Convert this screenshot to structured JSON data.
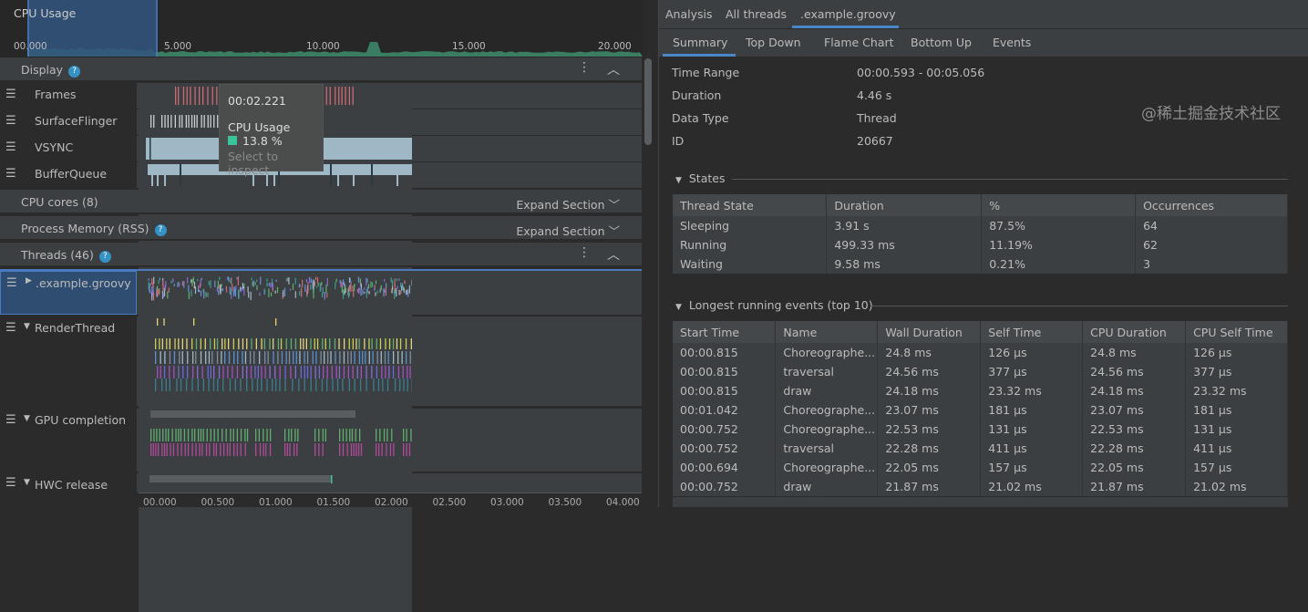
{
  "overview": {
    "title": "CPU Usage",
    "ticks": [
      "00.000",
      "5.000",
      "10.000",
      "15.000",
      "20.000"
    ]
  },
  "tooltip": {
    "time": "00:02.221",
    "label": "CPU Usage",
    "value": "13.8 %",
    "hint": "Select to inspect",
    "swatch": "#3bc49b"
  },
  "display": {
    "title": "Display"
  },
  "display_tracks": [
    "Frames",
    "SurfaceFlinger",
    "VSYNC",
    "BufferQueue"
  ],
  "sections": [
    {
      "title": "CPU cores (8)",
      "action": "Expand Section"
    },
    {
      "title": "Process Memory (RSS)",
      "action": "Expand Section"
    }
  ],
  "threads": {
    "title": "Threads (46)",
    "items": [
      ".example.groovy",
      "RenderThread",
      "GPU completion",
      "HWC release"
    ]
  },
  "time_axis": [
    "00.000",
    "00.500",
    "01.000",
    "01.500",
    "02.000",
    "02.500",
    "03.000",
    "03.500",
    "04.000"
  ],
  "right": {
    "tabs": [
      "Analysis",
      "All threads",
      ".example.groovy"
    ],
    "subtabs": [
      "Summary",
      "Top Down",
      "Flame Chart",
      "Bottom Up",
      "Events"
    ],
    "summary": [
      [
        "Time Range",
        "00:00.593 - 00:05.056"
      ],
      [
        "Duration",
        "4.46 s"
      ],
      [
        "Data Type",
        "Thread"
      ],
      [
        "ID",
        "20667"
      ]
    ],
    "states_title": "States",
    "states_cols": [
      "Thread State",
      "Duration",
      "%",
      "Occurrences"
    ],
    "states_rows": [
      [
        "Sleeping",
        "3.91 s",
        "87.5%",
        "64"
      ],
      [
        "Running",
        "499.33 ms",
        "11.19%",
        "62"
      ],
      [
        "Waiting",
        "9.58 ms",
        "0.21%",
        "3"
      ]
    ],
    "events_title": "Longest running events (top 10)",
    "events_cols": [
      "Start Time",
      "Name",
      "Wall Duration",
      "Self Time",
      "CPU Duration",
      "CPU Self Time"
    ],
    "events_rows": [
      [
        "00:00.815",
        "Choreographe...",
        "24.8 ms",
        "126 μs",
        "24.8 ms",
        "126 μs"
      ],
      [
        "00:00.815",
        "traversal",
        "24.56 ms",
        "377 μs",
        "24.56 ms",
        "377 μs"
      ],
      [
        "00:00.815",
        "draw",
        "24.18 ms",
        "23.32 ms",
        "24.18 ms",
        "23.32 ms"
      ],
      [
        "00:01.042",
        "Choreographe...",
        "23.07 ms",
        "181 μs",
        "23.07 ms",
        "181 μs"
      ],
      [
        "00:00.752",
        "Choreographe...",
        "22.53 ms",
        "131 μs",
        "22.53 ms",
        "131 μs"
      ],
      [
        "00:00.752",
        "traversal",
        "22.28 ms",
        "411 μs",
        "22.28 ms",
        "411 μs"
      ],
      [
        "00:00.694",
        "Choreographe...",
        "22.05 ms",
        "157 μs",
        "22.05 ms",
        "157 μs"
      ],
      [
        "00:00.752",
        "draw",
        "21.87 ms",
        "21.02 ms",
        "21.87 ms",
        "21.02 ms"
      ]
    ]
  },
  "watermark": "@稀土掘金技术社区",
  "colors": {
    "accent": "#4a88c7",
    "cpu": "#3b7d62",
    "frames": "#c96b73",
    "vsync": "#9fb8c6",
    "gpu_green": "#5fae6e",
    "gpu_magenta": "#b04a9b"
  }
}
